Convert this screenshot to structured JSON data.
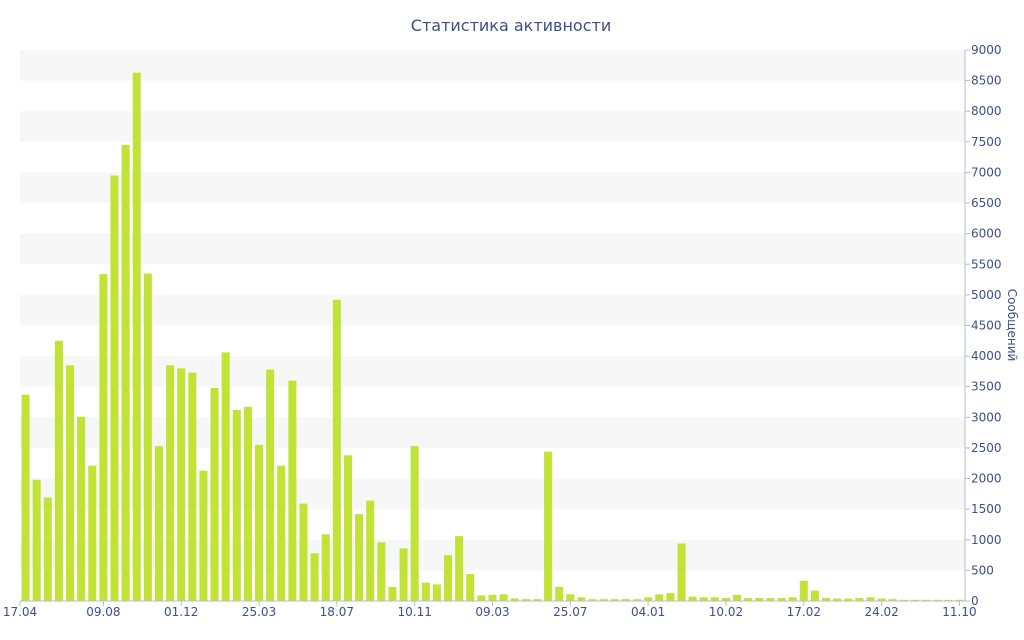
{
  "chart_data": {
    "type": "bar",
    "title": "Статистика активности",
    "xlabel": "",
    "ylabel": "Сообщений",
    "ylim": [
      0,
      9000
    ],
    "yticks": [
      0,
      500,
      1000,
      1500,
      2000,
      2500,
      3000,
      3500,
      4000,
      4500,
      5000,
      5500,
      6000,
      6500,
      7000,
      7500,
      8000,
      8500,
      9000
    ],
    "y_axis_side": "right",
    "grid": "alternating horizontal bands",
    "x_tick_labels": [
      "17.04",
      "09.08",
      "01.12",
      "25.03",
      "18.07",
      "10.11",
      "09.03",
      "25.07",
      "04.01",
      "10.02",
      "17.02",
      "24.02",
      "11.10"
    ],
    "x_tick_positions": [
      0,
      7.5,
      14.5,
      21.5,
      28.5,
      35.5,
      42.5,
      49.5,
      56.5,
      63.5,
      70.5,
      77.5,
      84.5
    ],
    "bar_color": "#c0e335",
    "band_color": "#f7f7f7",
    "text_color": "#3e4f8a",
    "values": [
      3370,
      1980,
      1690,
      4250,
      3850,
      3010,
      2210,
      5340,
      6950,
      7450,
      8630,
      5350,
      2530,
      3850,
      3800,
      3730,
      2130,
      3480,
      4060,
      3120,
      3170,
      2550,
      3780,
      2210,
      3600,
      1590,
      780,
      1090,
      4920,
      2380,
      1420,
      1640,
      960,
      230,
      860,
      2530,
      300,
      270,
      750,
      1060,
      440,
      90,
      100,
      110,
      40,
      30,
      30,
      2440,
      230,
      110,
      60,
      30,
      30,
      30,
      30,
      30,
      60,
      110,
      130,
      940,
      70,
      60,
      60,
      50,
      100,
      50,
      50,
      50,
      50,
      60,
      330,
      170,
      50,
      40,
      40,
      50,
      60,
      40,
      30,
      20,
      20,
      20,
      20,
      20,
      20
    ]
  }
}
